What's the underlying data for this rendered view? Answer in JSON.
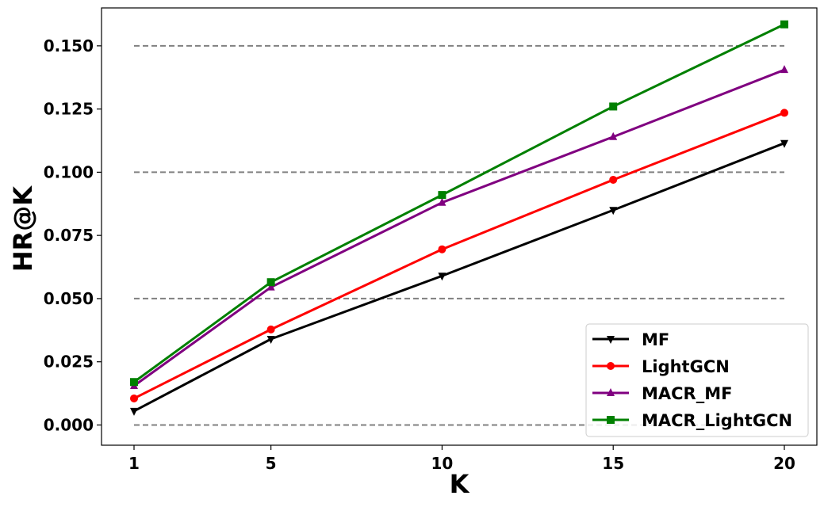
{
  "chart_data": {
    "type": "line",
    "xlabel": "K",
    "ylabel": "HR@K",
    "x": [
      1,
      5,
      10,
      15,
      20
    ],
    "x_ticks": [
      "1",
      "5",
      "10",
      "15",
      "20"
    ],
    "y_ticks": [
      "0.000",
      "0.025",
      "0.050",
      "0.075",
      "0.100",
      "0.125",
      "0.150"
    ],
    "ylim": [
      -0.008,
      0.165
    ],
    "y_tick_values": [
      0,
      0.025,
      0.05,
      0.075,
      0.1,
      0.125,
      0.15
    ],
    "reference_lines": [
      0,
      0.05,
      0.1,
      0.15
    ],
    "legend_position": "lower-right",
    "series": [
      {
        "name": "MF",
        "color": "#000000",
        "marker": "triangle-down",
        "values": [
          0.0055,
          0.034,
          0.059,
          0.085,
          0.1115
        ]
      },
      {
        "name": "LightGCN",
        "color": "#ff0000",
        "marker": "circle",
        "values": [
          0.0105,
          0.0378,
          0.0695,
          0.097,
          0.1235
        ]
      },
      {
        "name": "MACR_MF",
        "color": "#800080",
        "marker": "triangle-up",
        "values": [
          0.0155,
          0.0545,
          0.088,
          0.114,
          0.1405
        ]
      },
      {
        "name": "MACR_LightGCN",
        "color": "#008000",
        "marker": "square",
        "values": [
          0.017,
          0.0565,
          0.091,
          0.126,
          0.1585
        ]
      }
    ]
  }
}
